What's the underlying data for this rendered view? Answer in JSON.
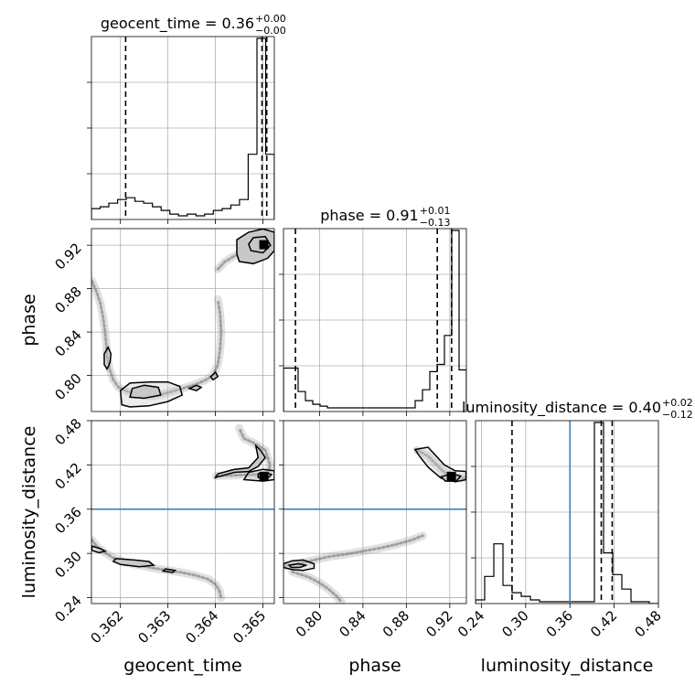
{
  "chart_data": {
    "type": "corner",
    "parameters": [
      "geocent_time",
      "phase",
      "luminosity_distance"
    ],
    "ranges": {
      "geocent_time": [
        0.36139,
        0.36524
      ],
      "phase": [
        0.7668,
        0.9353
      ],
      "luminosity_distance": [
        0.232,
        0.48
      ]
    },
    "ticks": {
      "geocent_time": [
        "0.362",
        "0.363",
        "0.364",
        "0.365"
      ],
      "phase": [
        "0.80",
        "0.84",
        "0.88",
        "0.92"
      ],
      "luminosity_distance": [
        "0.24",
        "0.30",
        "0.36",
        "0.42",
        "0.48"
      ]
    },
    "tick_values": {
      "geocent_time": [
        0.362,
        0.363,
        0.364,
        0.365
      ],
      "phase": [
        0.8,
        0.84,
        0.88,
        0.92
      ],
      "luminosity_distance": [
        0.24,
        0.3,
        0.36,
        0.42,
        0.48
      ]
    },
    "titles": {
      "geocent_time": {
        "main": "geocent_time = 0.36",
        "plus": "+0.00",
        "minus": "−0.00"
      },
      "phase": {
        "main": "phase = 0.91",
        "plus": "+0.01",
        "minus": "−0.13"
      },
      "luminosity_distance": {
        "main": "luminosity_distance = 0.40",
        "plus": "+0.02",
        "minus": "−0.12"
      }
    },
    "quantiles": {
      "geocent_time": [
        0.36211,
        0.36498,
        0.36508
      ],
      "phase": [
        0.7778,
        0.9085,
        0.9217
      ],
      "luminosity_distance": [
        0.2815,
        0.4025,
        0.4173
      ]
    },
    "truth": {
      "luminosity_distance": 0.36
    },
    "histograms": {
      "geocent_time": [
        0.06,
        0.07,
        0.09,
        0.11,
        0.12,
        0.1,
        0.09,
        0.07,
        0.05,
        0.03,
        0.02,
        0.03,
        0.02,
        0.03,
        0.05,
        0.06,
        0.08,
        0.11,
        0.36,
        1.0,
        0.36
      ],
      "phase": [
        0.24,
        0.24,
        0.11,
        0.06,
        0.04,
        0.03,
        0.02,
        0.02,
        0.02,
        0.02,
        0.02,
        0.02,
        0.02,
        0.02,
        0.02,
        0.02,
        0.02,
        0.02,
        0.06,
        0.12,
        0.22,
        0.26,
        0.42,
        1.0,
        0.23
      ],
      "luminosity_distance": [
        0.02,
        0.15,
        0.33,
        0.1,
        0.06,
        0.04,
        0.02,
        0.01,
        0.01,
        0.01,
        0.01,
        0.01,
        0.01,
        1.0,
        0.28,
        0.16,
        0.08,
        0.01,
        0.01,
        0.0
      ]
    },
    "scatter_paths": {
      "geocent_time_phase": [
        [
          0.3614,
          0.887
        ],
        [
          0.3615,
          0.877
        ],
        [
          0.36158,
          0.866
        ],
        [
          0.36163,
          0.855
        ],
        [
          0.36167,
          0.843
        ],
        [
          0.3617,
          0.83
        ],
        [
          0.36172,
          0.818
        ],
        [
          0.36177,
          0.806
        ],
        [
          0.36185,
          0.796
        ],
        [
          0.36196,
          0.789
        ],
        [
          0.3621,
          0.786
        ],
        [
          0.36225,
          0.784
        ],
        [
          0.36245,
          0.782
        ],
        [
          0.36268,
          0.781
        ],
        [
          0.3629,
          0.783
        ],
        [
          0.36315,
          0.786
        ],
        [
          0.36338,
          0.789
        ],
        [
          0.3636,
          0.792
        ],
        [
          0.3638,
          0.796
        ],
        [
          0.36395,
          0.8
        ],
        [
          0.36405,
          0.81
        ],
        [
          0.3641,
          0.825
        ],
        [
          0.36412,
          0.84
        ],
        [
          0.3641,
          0.856
        ],
        [
          0.36405,
          0.87
        ]
      ],
      "geocent_time_phase_b": [
        [
          0.36405,
          0.898
        ],
        [
          0.3642,
          0.905
        ],
        [
          0.3644,
          0.91
        ],
        [
          0.36465,
          0.915
        ],
        [
          0.3649,
          0.919
        ],
        [
          0.3651,
          0.922
        ],
        [
          0.3652,
          0.925
        ],
        [
          0.36522,
          0.93
        ]
      ],
      "geocent_time_luminosity_distance": [
        [
          0.3614,
          0.318
        ],
        [
          0.3615,
          0.31
        ],
        [
          0.36165,
          0.302
        ],
        [
          0.36185,
          0.294
        ],
        [
          0.3621,
          0.288
        ],
        [
          0.3624,
          0.284
        ],
        [
          0.3627,
          0.28
        ],
        [
          0.363,
          0.277
        ],
        [
          0.3633,
          0.274
        ],
        [
          0.3636,
          0.27
        ],
        [
          0.36385,
          0.265
        ],
        [
          0.364,
          0.258
        ],
        [
          0.36408,
          0.25
        ],
        [
          0.36412,
          0.24
        ]
      ],
      "geocent_time_luminosity_distance_b": [
        [
          0.36402,
          0.405
        ],
        [
          0.3644,
          0.406
        ],
        [
          0.3648,
          0.407
        ],
        [
          0.3651,
          0.405
        ],
        [
          0.36515,
          0.42
        ],
        [
          0.36505,
          0.44
        ],
        [
          0.3648,
          0.45
        ],
        [
          0.3646,
          0.456
        ],
        [
          0.3645,
          0.47
        ]
      ],
      "phase_luminosity_distance": [
        [
          0.7668,
          0.283
        ],
        [
          0.78,
          0.286
        ],
        [
          0.795,
          0.291
        ],
        [
          0.81,
          0.296
        ],
        [
          0.825,
          0.299
        ],
        [
          0.84,
          0.303
        ],
        [
          0.855,
          0.307
        ],
        [
          0.87,
          0.312
        ],
        [
          0.885,
          0.318
        ],
        [
          0.895,
          0.324
        ]
      ],
      "phase_luminosity_distance_c": [
        [
          0.775,
          0.275
        ],
        [
          0.79,
          0.268
        ],
        [
          0.8,
          0.26
        ],
        [
          0.808,
          0.252
        ],
        [
          0.815,
          0.243
        ],
        [
          0.82,
          0.235
        ]
      ],
      "phase_luminosity_distance_b": [
        [
          0.89,
          0.44
        ],
        [
          0.9,
          0.432
        ],
        [
          0.908,
          0.42
        ],
        [
          0.915,
          0.41
        ],
        [
          0.922,
          0.404
        ],
        [
          0.93,
          0.402
        ],
        [
          0.935,
          0.402
        ]
      ]
    },
    "contours": {
      "geocent_time_phase": [
        [
          [
            0.36203,
            0.773
          ],
          [
            0.3622,
            0.771
          ],
          [
            0.3626,
            0.772
          ],
          [
            0.363,
            0.776
          ],
          [
            0.3633,
            0.782
          ],
          [
            0.36325,
            0.79
          ],
          [
            0.363,
            0.794
          ],
          [
            0.3626,
            0.794
          ],
          [
            0.3622,
            0.793
          ],
          [
            0.362,
            0.786
          ]
        ],
        [
          [
            0.3622,
            0.78
          ],
          [
            0.3625,
            0.779
          ],
          [
            0.36285,
            0.782
          ],
          [
            0.3628,
            0.789
          ],
          [
            0.3625,
            0.791
          ],
          [
            0.36225,
            0.788
          ]
        ],
        [
          [
            0.36172,
            0.806
          ],
          [
            0.36178,
            0.812
          ],
          [
            0.3618,
            0.82
          ],
          [
            0.36174,
            0.826
          ],
          [
            0.36166,
            0.82
          ],
          [
            0.36166,
            0.81
          ]
        ],
        [
          [
            0.36345,
            0.788
          ],
          [
            0.3636,
            0.786
          ],
          [
            0.3637,
            0.789
          ],
          [
            0.3636,
            0.791
          ]
        ],
        [
          [
            0.36395,
            0.796
          ],
          [
            0.36405,
            0.799
          ],
          [
            0.364,
            0.803
          ],
          [
            0.3639,
            0.799
          ]
        ],
        [
          [
            0.3645,
            0.905
          ],
          [
            0.3648,
            0.903
          ],
          [
            0.3651,
            0.908
          ],
          [
            0.36524,
            0.915
          ],
          [
            0.36524,
            0.932
          ],
          [
            0.365,
            0.935
          ],
          [
            0.3647,
            0.932
          ],
          [
            0.36445,
            0.925
          ],
          [
            0.36445,
            0.912
          ]
        ],
        [
          [
            0.36475,
            0.915
          ],
          [
            0.365,
            0.913
          ],
          [
            0.36516,
            0.92
          ],
          [
            0.36505,
            0.928
          ],
          [
            0.3648,
            0.927
          ],
          [
            0.3647,
            0.921
          ]
        ]
      ],
      "geocent_time_luminosity_distance": [
        [
          [
            0.3614,
            0.31
          ],
          [
            0.3616,
            0.306
          ],
          [
            0.36168,
            0.303
          ],
          [
            0.36155,
            0.301
          ],
          [
            0.3614,
            0.304
          ]
        ],
        [
          [
            0.3619,
            0.293
          ],
          [
            0.3623,
            0.291
          ],
          [
            0.3626,
            0.289
          ],
          [
            0.3627,
            0.284
          ],
          [
            0.3624,
            0.282
          ],
          [
            0.362,
            0.285
          ],
          [
            0.36185,
            0.289
          ]
        ],
        [
          [
            0.36295,
            0.279
          ],
          [
            0.36315,
            0.277
          ],
          [
            0.3631,
            0.274
          ],
          [
            0.3629,
            0.276
          ]
        ],
        [
          [
            0.364,
            0.403
          ],
          [
            0.3644,
            0.41
          ],
          [
            0.3647,
            0.411
          ],
          [
            0.3649,
            0.418
          ],
          [
            0.36505,
            0.43
          ],
          [
            0.36495,
            0.44
          ],
          [
            0.36485,
            0.446
          ],
          [
            0.3649,
            0.43
          ],
          [
            0.3647,
            0.416
          ],
          [
            0.3644,
            0.414
          ],
          [
            0.36405,
            0.408
          ]
        ],
        [
          [
            0.3646,
            0.4
          ],
          [
            0.365,
            0.398
          ],
          [
            0.36524,
            0.4
          ],
          [
            0.36524,
            0.412
          ],
          [
            0.365,
            0.414
          ],
          [
            0.3647,
            0.41
          ]
        ],
        [
          [
            0.3649,
            0.403
          ],
          [
            0.3651,
            0.402
          ],
          [
            0.36518,
            0.407
          ],
          [
            0.36505,
            0.41
          ],
          [
            0.3649,
            0.408
          ]
        ]
      ],
      "phase_luminosity_distance": [
        [
          [
            0.7668,
            0.286
          ],
          [
            0.775,
            0.29
          ],
          [
            0.785,
            0.291
          ],
          [
            0.795,
            0.286
          ],
          [
            0.795,
            0.28
          ],
          [
            0.785,
            0.277
          ],
          [
            0.775,
            0.278
          ],
          [
            0.7668,
            0.281
          ]
        ],
        [
          [
            0.772,
            0.284
          ],
          [
            0.78,
            0.286
          ],
          [
            0.788,
            0.284
          ],
          [
            0.782,
            0.281
          ],
          [
            0.774,
            0.281
          ]
        ],
        [
          [
            0.888,
            0.441
          ],
          [
            0.9,
            0.444
          ],
          [
            0.905,
            0.436
          ],
          [
            0.915,
            0.42
          ],
          [
            0.925,
            0.412
          ],
          [
            0.935,
            0.411
          ],
          [
            0.935,
            0.4
          ],
          [
            0.925,
            0.397
          ],
          [
            0.912,
            0.402
          ],
          [
            0.9,
            0.417
          ],
          [
            0.892,
            0.432
          ]
        ],
        [
          [
            0.912,
            0.404
          ],
          [
            0.922,
            0.408
          ],
          [
            0.93,
            0.405
          ],
          [
            0.926,
            0.398
          ],
          [
            0.916,
            0.398
          ]
        ]
      ]
    },
    "peaks": {
      "geocent_time_phase": [
        0.36502,
        0.9205
      ],
      "geocent_time_luminosity_distance": [
        0.36502,
        0.4045
      ],
      "phase_luminosity_distance": [
        0.9215,
        0.4045
      ]
    },
    "truth_color": "#4682b4"
  }
}
